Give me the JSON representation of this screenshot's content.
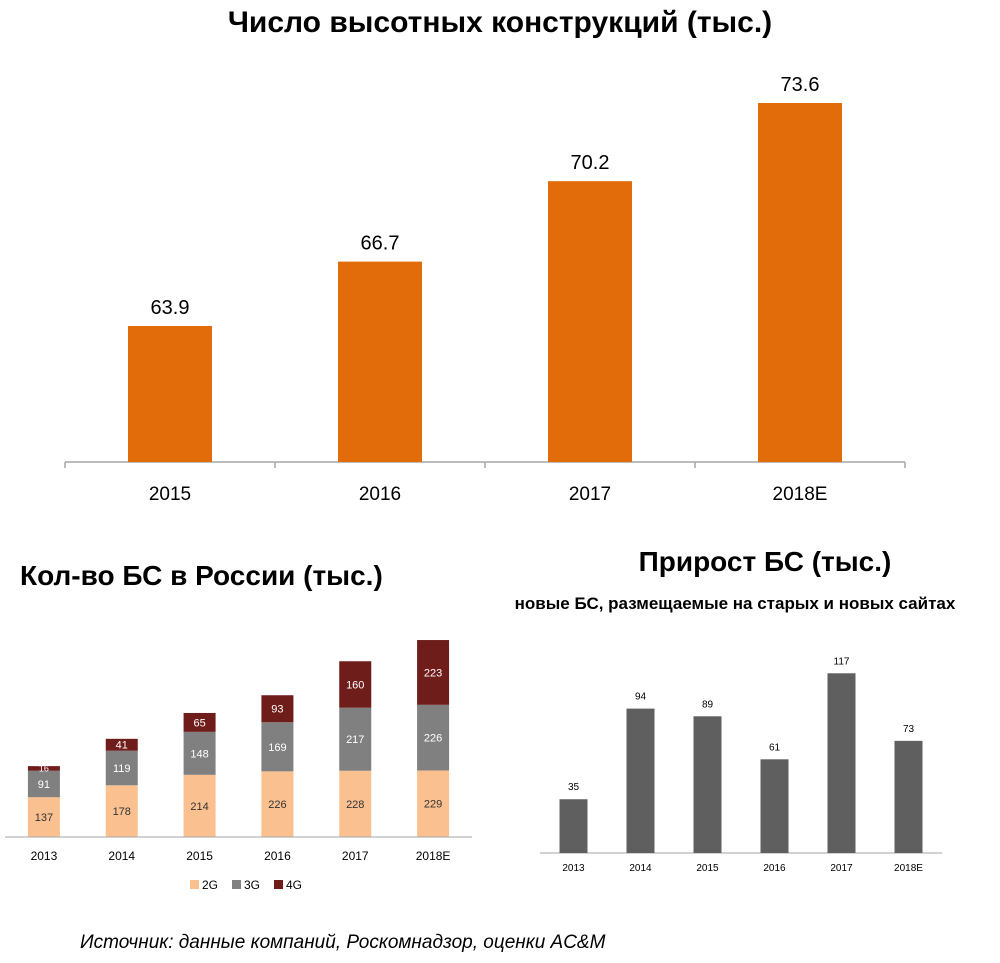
{
  "chart_data": [
    {
      "type": "bar",
      "title": "Число высотных конструкций (тыс.)",
      "categories": [
        "2015",
        "2016",
        "2017",
        "2018E"
      ],
      "values": [
        63.9,
        66.7,
        70.2,
        73.6
      ],
      "value_labels": [
        "63.9",
        "66.7",
        "70.2",
        "73.6"
      ],
      "color": "#e36c0a",
      "grid": false,
      "legend": "none"
    },
    {
      "type": "bar",
      "stacked": true,
      "title": "Кол-во БС в России (тыс.)",
      "categories": [
        "2013",
        "2014",
        "2015",
        "2016",
        "2017",
        "2018E"
      ],
      "series": [
        {
          "name": "2G",
          "values": [
            137,
            178,
            214,
            226,
            228,
            229
          ],
          "color": "#fac090"
        },
        {
          "name": "3G",
          "values": [
            91,
            119,
            148,
            169,
            217,
            226
          ],
          "color": "#808080"
        },
        {
          "name": "4G",
          "values": [
            16,
            41,
            65,
            93,
            160,
            223
          ],
          "color": "#6f1d1b"
        }
      ],
      "grid": false,
      "legend": "bottom"
    },
    {
      "type": "bar",
      "title": "Прирост БС (тыс.)",
      "subtitle": "новые БС, размещаемые на старых и новых сайтах",
      "categories": [
        "2013",
        "2014",
        "2015",
        "2016",
        "2017",
        "2018E"
      ],
      "values": [
        35,
        94,
        89,
        61,
        117,
        73
      ],
      "color": "#5f5f5f",
      "grid": false,
      "legend": "none"
    }
  ],
  "source": "Источник: данные компаний, Роскомнадзор, оценки AC&M"
}
